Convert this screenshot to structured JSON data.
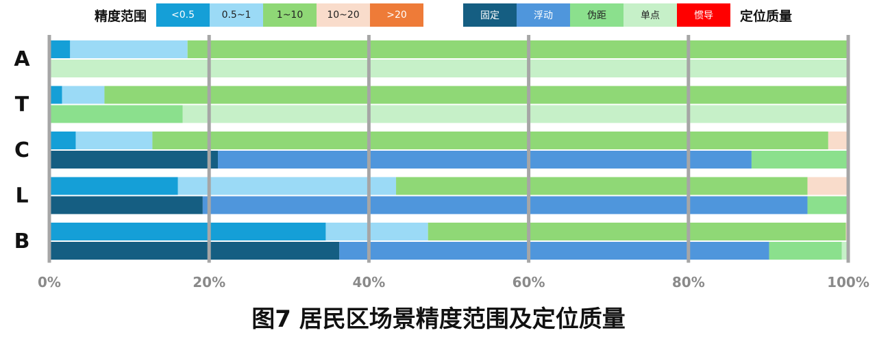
{
  "legend_accuracy": {
    "title": "精度范围",
    "items": [
      {
        "label": "<0.5",
        "color": "#159fd7",
        "text": "dark"
      },
      {
        "label": "0.5~1",
        "color": "#9bdaf6",
        "text": "light"
      },
      {
        "label": "1~10",
        "color": "#8fd876",
        "text": "light"
      },
      {
        "label": "10~20",
        "color": "#f9dccb",
        "text": "light"
      },
      {
        "label": ">20",
        "color": "#ee7b38",
        "text": "dark"
      }
    ]
  },
  "legend_quality": {
    "title": "定位质量",
    "items": [
      {
        "label": "固定",
        "color": "#155e82",
        "text": "dark"
      },
      {
        "label": "浮动",
        "color": "#4f96dc",
        "text": "dark"
      },
      {
        "label": "伪距",
        "color": "#8be08d",
        "text": "light"
      },
      {
        "label": "单点",
        "color": "#c6f0c8",
        "text": "light"
      },
      {
        "label": "惯导",
        "color": "#ff0000",
        "text": "dark"
      }
    ]
  },
  "caption": "图7 居民区场景精度范围及定位质量",
  "chart_data": {
    "type": "bar",
    "orientation": "horizontal-stacked",
    "categories": [
      "A",
      "T",
      "C",
      "L",
      "B"
    ],
    "xlim": [
      0,
      100
    ],
    "xticks": [
      "0%",
      "20%",
      "40%",
      "60%",
      "80%",
      "100%"
    ],
    "grid": true,
    "accuracy_series": [
      {
        "name": "<0.5",
        "values": [
          2.6,
          1.6,
          3.3,
          16.1,
          34.6
        ]
      },
      {
        "name": "0.5~1",
        "values": [
          14.7,
          5.3,
          9.6,
          27.3,
          12.8
        ]
      },
      {
        "name": "1~10",
        "values": [
          82.7,
          93.0,
          84.6,
          51.5,
          52.3
        ]
      },
      {
        "name": "10~20",
        "values": [
          0,
          0,
          2.5,
          5.1,
          0.3
        ]
      },
      {
        "name": ">20",
        "values": [
          0,
          0,
          0,
          0,
          0
        ]
      }
    ],
    "quality_series": [
      {
        "name": "固定",
        "values": [
          0,
          0,
          21.1,
          19.2,
          36.3
        ]
      },
      {
        "name": "浮动",
        "values": [
          0,
          0,
          66.8,
          75.7,
          53.8
        ]
      },
      {
        "name": "伪距",
        "values": [
          0,
          16.7,
          12.1,
          5.1,
          9.1
        ]
      },
      {
        "name": "单点",
        "values": [
          100,
          83.3,
          0,
          0,
          0.8
        ]
      },
      {
        "name": "惯导",
        "values": [
          0,
          0,
          0,
          0,
          0
        ]
      }
    ]
  }
}
